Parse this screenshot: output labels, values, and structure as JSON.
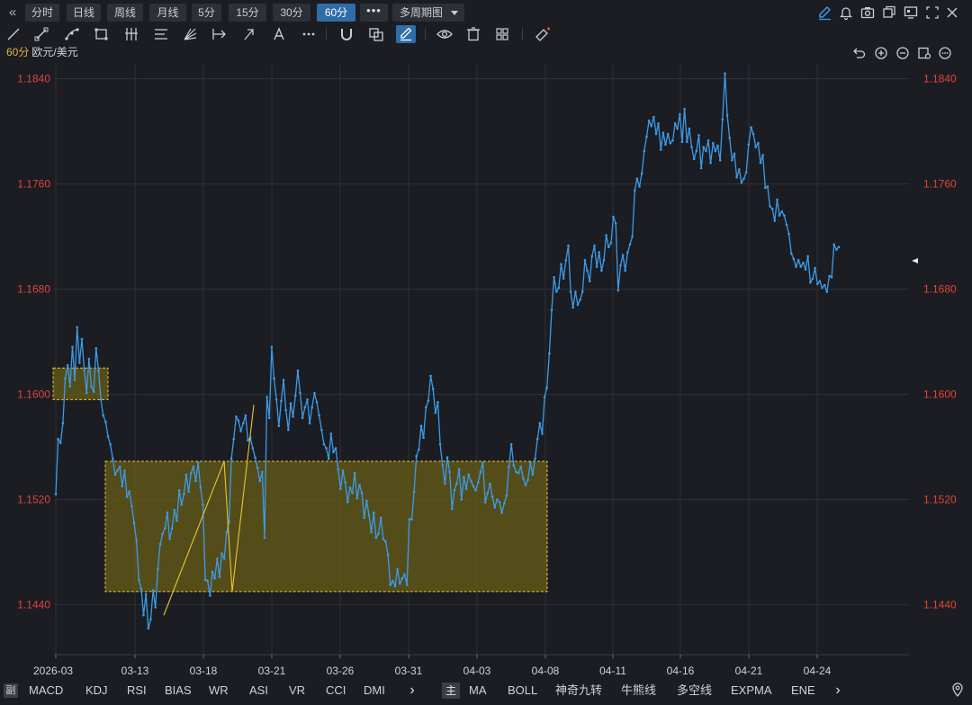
{
  "toolbar": {
    "collapse_icon": "double-chevron-left-icon",
    "periods": [
      {
        "label": "分时",
        "active": false
      },
      {
        "label": "日线",
        "active": false
      },
      {
        "label": "周线",
        "active": false
      },
      {
        "label": "月线",
        "active": false
      },
      {
        "label": "5分",
        "active": false
      },
      {
        "label": "15分",
        "active": false
      },
      {
        "label": "30分",
        "active": false
      },
      {
        "label": "60分",
        "active": true
      }
    ],
    "more_label": "•••",
    "multi_period_label": "多周期图",
    "right_icons": [
      "pencil-icon",
      "bell-icon",
      "camera-icon",
      "window-copy-icon",
      "monitor-icon",
      "fullscreen-icon",
      "close-icon"
    ]
  },
  "drawing_tools": [
    "line-tool-icon",
    "ray-tool-icon",
    "curve-tool-icon",
    "rectangle-tool-icon",
    "parallel-lines-icon",
    "fibonacci-icon",
    "fan-icon",
    "measure-icon",
    "arrow-tool-icon",
    "text-tool-icon",
    "more-tools-icon",
    "magnet-icon",
    "layers-icon",
    "draw-mode-icon",
    "eye-icon",
    "trash-icon",
    "grid-settings-icon",
    "eraser-icon"
  ],
  "symbol": {
    "period": "60分",
    "name": "欧元/美元"
  },
  "chart_controls": [
    "undo-icon",
    "zoom-in-icon",
    "zoom-out-icon",
    "chart-settings-icon",
    "more-options-icon"
  ],
  "colors": {
    "background": "#1b1d22",
    "grid": "#2c3037",
    "line": "#3d9be9",
    "axis_label": "#e0433b",
    "time_label": "#cfd3da",
    "box_fill": "#6b6018",
    "box_border": "#e8c53a",
    "trend_line": "#e8c53a",
    "active_button": "#2f6ca8"
  },
  "chart_data": {
    "type": "line",
    "title": "",
    "xlabel": "",
    "ylabel": "",
    "ylim": [
      1.1402,
      1.1852
    ],
    "yticks": [
      "1.1840",
      "1.1760",
      "1.1680",
      "1.1600",
      "1.1520",
      "1.1440"
    ],
    "ytick_values": [
      1.184,
      1.176,
      1.168,
      1.16,
      1.152,
      1.144
    ],
    "xticks": [
      "2026-03",
      "03-13",
      "03-18",
      "03-21",
      "03-26",
      "03-31",
      "04-03",
      "04-08",
      "04-11",
      "04-16",
      "04-21",
      "04-24"
    ],
    "grid": true,
    "series": [
      {
        "values": [
          1.1524,
          1.1566,
          1.1563,
          1.1578,
          1.1612,
          1.1622,
          1.1606,
          1.1636,
          1.1611,
          1.1651,
          1.1624,
          1.1642,
          1.1619,
          1.1601,
          1.1627,
          1.1606,
          1.1602,
          1.1635,
          1.1618,
          1.1596,
          1.1584,
          1.1579,
          1.1568,
          1.1562,
          1.1551,
          1.1539,
          1.1542,
          1.1545,
          1.153,
          1.1542,
          1.1522,
          1.1526,
          1.1515,
          1.1502,
          1.1489,
          1.1459,
          1.1452,
          1.1432,
          1.1448,
          1.1422,
          1.1429,
          1.1451,
          1.1438,
          1.1467,
          1.1486,
          1.1494,
          1.1498,
          1.151,
          1.149,
          1.1498,
          1.1512,
          1.1504,
          1.1527,
          1.1516,
          1.1524,
          1.1539,
          1.1526,
          1.154,
          1.1545,
          1.1534,
          1.1548,
          1.1529,
          1.1516,
          1.1459,
          1.1458,
          1.1447,
          1.1465,
          1.146,
          1.1475,
          1.1461,
          1.1479,
          1.1475,
          1.1495,
          1.1503,
          1.1551,
          1.1566,
          1.1583,
          1.158,
          1.1572,
          1.1578,
          1.1584,
          1.1565,
          1.1567,
          1.1559,
          1.1552,
          1.1544,
          1.1534,
          1.1541,
          1.1491,
          1.1598,
          1.1582,
          1.1636,
          1.1612,
          1.1596,
          1.1576,
          1.1595,
          1.1611,
          1.1588,
          1.1573,
          1.1593,
          1.1583,
          1.1599,
          1.1618,
          1.1601,
          1.1582,
          1.159,
          1.1596,
          1.1578,
          1.159,
          1.1601,
          1.1594,
          1.1584,
          1.1573,
          1.1562,
          1.1559,
          1.1551,
          1.157,
          1.1556,
          1.1559,
          1.1543,
          1.1528,
          1.1542,
          1.1533,
          1.1518,
          1.1529,
          1.1525,
          1.154,
          1.1521,
          1.1531,
          1.1525,
          1.1506,
          1.1519,
          1.1508,
          1.1495,
          1.151,
          1.1491,
          1.1494,
          1.1506,
          1.149,
          1.1488,
          1.1478,
          1.1455,
          1.1458,
          1.1454,
          1.1467,
          1.1456,
          1.146,
          1.1463,
          1.1455,
          1.1505,
          1.1505,
          1.1526,
          1.1553,
          1.1558,
          1.1576,
          1.1567,
          1.159,
          1.1595,
          1.1614,
          1.1604,
          1.1586,
          1.1594,
          1.1562,
          1.1546,
          1.1532,
          1.1552,
          1.1541,
          1.1513,
          1.1527,
          1.1532,
          1.1543,
          1.152,
          1.1537,
          1.1528,
          1.1539,
          1.1534,
          1.153,
          1.1527,
          1.1533,
          1.1541,
          1.1548,
          1.1518,
          1.1525,
          1.1532,
          1.1522,
          1.1514,
          1.152,
          1.1518,
          1.151,
          1.1517,
          1.1523,
          1.1545,
          1.1562,
          1.1546,
          1.1541,
          1.154,
          1.1545,
          1.1536,
          1.1531,
          1.1535,
          1.1548,
          1.1539,
          1.1551,
          1.1566,
          1.1578,
          1.157,
          1.1598,
          1.1605,
          1.1631,
          1.1664,
          1.1689,
          1.1678,
          1.1681,
          1.1699,
          1.1688,
          1.1702,
          1.1713,
          1.1678,
          1.1666,
          1.1678,
          1.1668,
          1.1672,
          1.1678,
          1.1702,
          1.1694,
          1.1686,
          1.1705,
          1.1713,
          1.1697,
          1.1708,
          1.1694,
          1.1702,
          1.1721,
          1.1712,
          1.1715,
          1.1735,
          1.173,
          1.1679,
          1.1698,
          1.1706,
          1.1694,
          1.1708,
          1.1714,
          1.172,
          1.1755,
          1.1764,
          1.1758,
          1.1768,
          1.1785,
          1.1796,
          1.1808,
          1.1804,
          1.1811,
          1.1798,
          1.1806,
          1.1786,
          1.1799,
          1.179,
          1.1798,
          1.1791,
          1.1793,
          1.1806,
          1.1802,
          1.1813,
          1.1792,
          1.1817,
          1.1792,
          1.1802,
          1.1788,
          1.1779,
          1.1785,
          1.1797,
          1.1772,
          1.1788,
          1.1785,
          1.1793,
          1.1776,
          1.1791,
          1.1785,
          1.1789,
          1.1778,
          1.1809,
          1.1844,
          1.1812,
          1.1795,
          1.1778,
          1.1783,
          1.1765,
          1.1771,
          1.1761,
          1.1764,
          1.1769,
          1.179,
          1.1803,
          1.1798,
          1.1788,
          1.1791,
          1.1776,
          1.1782,
          1.1757,
          1.1758,
          1.1743,
          1.1741,
          1.1732,
          1.1748,
          1.1736,
          1.1739,
          1.1736,
          1.1729,
          1.1722,
          1.1707,
          1.1703,
          1.1697,
          1.1702,
          1.1697,
          1.17,
          1.1695,
          1.1705,
          1.1685,
          1.1688,
          1.1696,
          1.1684,
          1.1686,
          1.1681,
          1.1683,
          1.1678,
          1.169,
          1.1689,
          1.1714,
          1.171,
          1.1712
        ]
      }
    ],
    "annotations": [
      {
        "type": "rectangle",
        "x_range": [
          "2026-03",
          "03-13"
        ],
        "y_range": [
          1.1596,
          1.162
        ]
      },
      {
        "type": "rectangle",
        "x_range": [
          "03-13",
          "04-08"
        ],
        "y_range": [
          1.145,
          1.1549
        ]
      },
      {
        "type": "line",
        "from": [
          1.1432,
          "03-13"
        ],
        "to": [
          1.1549,
          "03-18"
        ]
      },
      {
        "type": "line",
        "from": [
          1.1549,
          "03-18"
        ],
        "to": [
          1.145,
          "03-18"
        ]
      },
      {
        "type": "line",
        "from": [
          1.145,
          "03-18"
        ],
        "to": [
          1.1592,
          "03-21"
        ]
      }
    ]
  },
  "indicators_left": [
    "MACD",
    "KDJ",
    "RSI",
    "BIAS",
    "WR",
    "ASI",
    "VR",
    "CCI",
    "DMI"
  ],
  "indicator_prefix": "副",
  "indicators_main_tag": "主",
  "indicators_right": [
    "MA",
    "BOLL",
    "神奇九转",
    "牛熊线",
    "多空线",
    "EXPMA",
    "ENE"
  ],
  "next_arrow": "›",
  "location_icon": "map-pin-icon"
}
